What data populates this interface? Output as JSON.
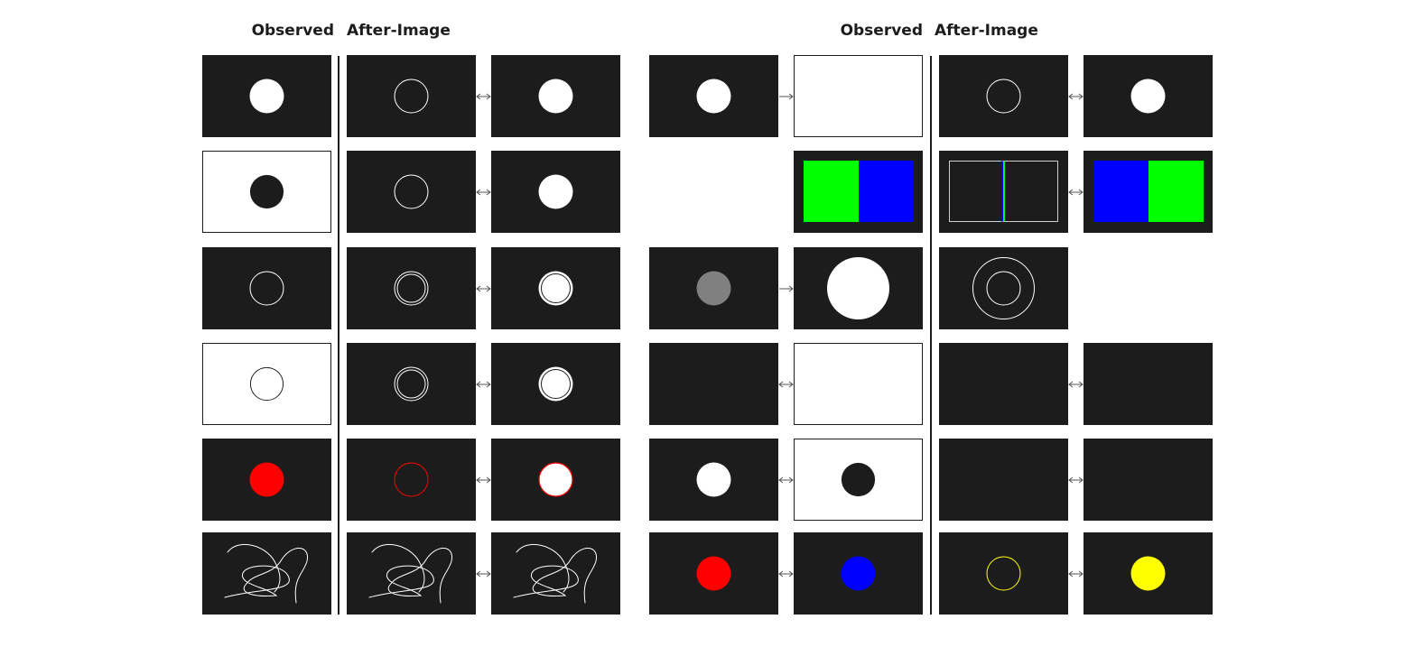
{
  "headers": {
    "left_observed": "Observed",
    "left_after_image": "After-Image",
    "right_observed": "Observed",
    "right_after_image": "After-Image"
  },
  "colors": {
    "dark_background": "#1c1c1c",
    "light_background": "#ffffff",
    "white": "#ffffff",
    "gray": "#808080",
    "red": "#ff0000",
    "green": "#00ff00",
    "blue": "#0000ff",
    "yellow": "#ffff00"
  },
  "left_rows": [
    {
      "observed": "white-disc-on-black",
      "after_image": "white-ring-on-black",
      "arrow": "double-arrow",
      "percept": "white-disc-on-black"
    },
    {
      "observed": "black-disc-on-white",
      "after_image": "white-ring-on-black",
      "arrow": "double-arrow",
      "percept": "white-disc-on-black"
    },
    {
      "observed": "white-ring-on-black",
      "after_image": "double-white-ring-on-black",
      "arrow": "double-arrow",
      "percept": "outlined-white-disc-on-black"
    },
    {
      "observed": "black-ring-on-white",
      "after_image": "double-white-ring-on-black",
      "arrow": "double-arrow",
      "percept": "outlined-white-disc-on-black"
    },
    {
      "observed": "red-disc-on-black",
      "after_image": "red-ring-on-black",
      "arrow": "double-arrow",
      "percept": "red-outlined-white-disc-on-black"
    },
    {
      "observed": "white-curve-on-black",
      "after_image": "white-curve-on-black",
      "arrow": "double-arrow",
      "percept": "white-curve-on-black"
    }
  ],
  "right_rows": [
    {
      "stimulus": "white-disc-on-black",
      "arrow_1": "right-arrow",
      "observed": "blank-white",
      "after_image": "white-ring-on-black",
      "arrow_2": "double-arrow",
      "percept": "white-disc-on-black"
    },
    {
      "stimulus": "none",
      "arrow_1": "none",
      "observed": "green-blue-halves",
      "after_image": "outlined-rect-with-center-line",
      "arrow_2": "double-arrow",
      "percept": "blue-green-halves"
    },
    {
      "stimulus": "gray-disc-on-black",
      "arrow_1": "right-arrow",
      "observed": "large-white-disc-on-black",
      "after_image": "concentric-white-rings-on-black",
      "arrow_2": "none",
      "percept": "none"
    },
    {
      "stimulus": "blank-black",
      "arrow_1": "double-arrow",
      "observed": "blank-white",
      "after_image": "blank-black",
      "arrow_2": "double-arrow",
      "percept": "blank-black"
    },
    {
      "stimulus": "white-disc-on-black",
      "arrow_1": "double-arrow",
      "observed": "black-disc-on-white",
      "after_image": "blank-black",
      "arrow_2": "double-arrow",
      "percept": "blank-black"
    },
    {
      "stimulus": "red-disc-on-black",
      "arrow_1": "double-arrow",
      "observed": "blue-disc-on-black",
      "after_image": "yellow-ring-on-black",
      "arrow_2": "double-arrow",
      "percept": "yellow-disc-on-black"
    }
  ]
}
